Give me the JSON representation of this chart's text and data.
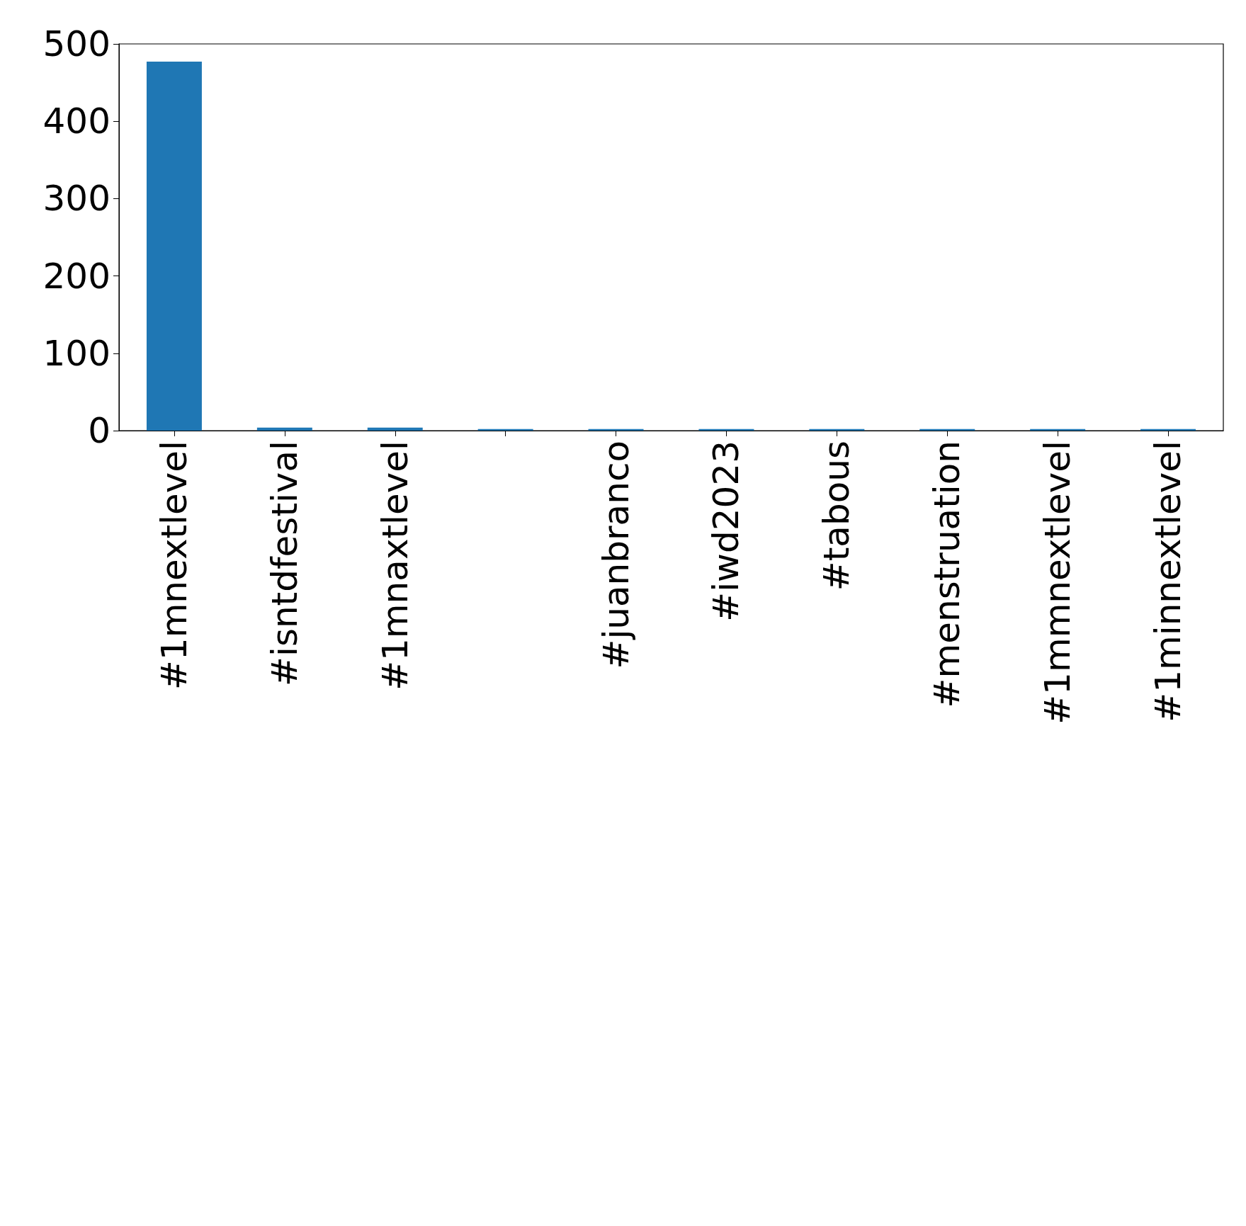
{
  "chart_data": {
    "type": "bar",
    "categories": [
      "#1mnextlevel",
      "#isntdfestival",
      "#1mnaxtlevel",
      null,
      "#juanbranco",
      "#iwd2023",
      "#tabous",
      "#menstruation",
      "#1mmnextlevel",
      "#1minnextlevel"
    ],
    "values": [
      477,
      4,
      4,
      2,
      2,
      2,
      2,
      2,
      2,
      2
    ],
    "color": "#1f77b4",
    "ylim": [
      0,
      500
    ],
    "yticks": [
      0,
      100,
      200,
      300,
      400,
      500
    ],
    "grid": false
  }
}
